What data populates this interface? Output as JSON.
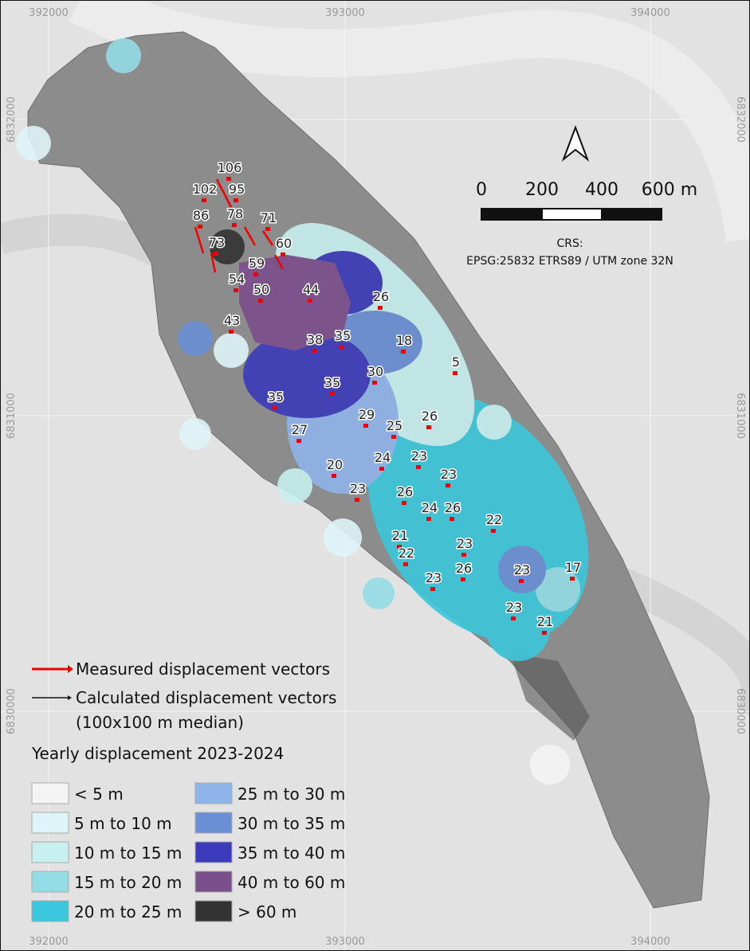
{
  "grid_labels": {
    "top": [
      "392000",
      "393000",
      "394000"
    ],
    "bottom": [
      "392000",
      "393000",
      "394000"
    ],
    "left": [
      "6832000",
      "6831000",
      "6830000"
    ],
    "right": [
      "6832000",
      "6831000",
      "6830000"
    ]
  },
  "scale_bar": {
    "ticks": [
      "0",
      "200",
      "400",
      "600 m"
    ]
  },
  "crs": {
    "title": "CRS:",
    "text": "EPSG:25832 ETRS89 / UTM zone 32N"
  },
  "legend": {
    "measured": "Measured displacement vectors",
    "calculated": "Calculated displacement vectors",
    "calculated_note": "(100x100 m median)",
    "title": "Yearly displacement 2023-2024",
    "classes": [
      {
        "label": "< 5 m",
        "color": "#f4f4f4"
      },
      {
        "label": "5 m to 10 m",
        "color": "#dff4f8"
      },
      {
        "label": "10 m to 15 m",
        "color": "#c8f0f0"
      },
      {
        "label": "15 m to 20 m",
        "color": "#95dde6"
      },
      {
        "label": "20 m to 25 m",
        "color": "#3cc8dc"
      },
      {
        "label": "25 m to 30 m",
        "color": "#8fb4ea"
      },
      {
        "label": "30 m to 35 m",
        "color": "#6a8fd4"
      },
      {
        "label": "35 m to 40 m",
        "color": "#3a3aba"
      },
      {
        "label": "40 m to 60 m",
        "color": "#7b4f8c"
      },
      {
        "label": "> 60 m",
        "color": "#333333"
      }
    ]
  },
  "measured_labels": [
    106,
    102,
    95,
    86,
    78,
    71,
    73,
    60,
    59,
    54,
    50,
    44,
    26,
    43,
    38,
    35,
    18,
    5,
    30,
    35,
    35,
    29,
    26,
    25,
    27,
    24,
    23,
    23,
    20,
    23,
    26,
    24,
    26,
    22,
    21,
    23,
    22,
    26,
    23,
    17,
    23,
    23,
    21
  ]
}
